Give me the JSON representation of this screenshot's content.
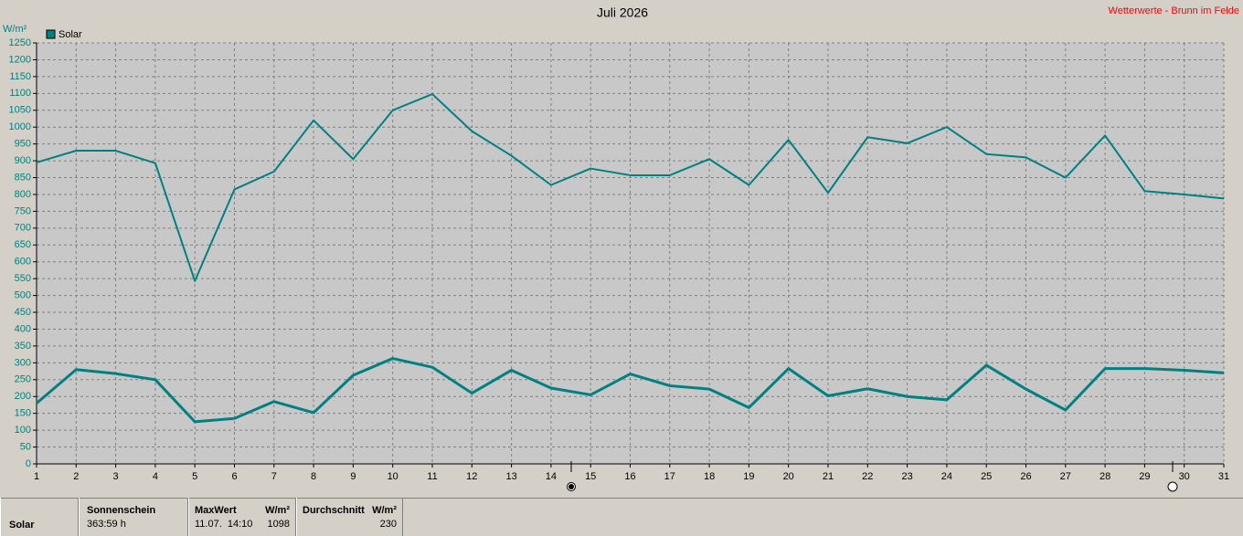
{
  "chart_data": {
    "type": "line",
    "title": "Juli 2026",
    "subtitle": "Wetterwerte - Brunn im Felde",
    "y_label": "W/m²",
    "x": [
      1,
      2,
      3,
      4,
      5,
      6,
      7,
      8,
      9,
      10,
      11,
      12,
      13,
      14,
      15,
      16,
      17,
      18,
      19,
      20,
      21,
      22,
      23,
      24,
      25,
      26,
      27,
      28,
      29,
      30,
      31
    ],
    "series": [
      {
        "name": "Solar",
        "color": "#008080",
        "values": [
          895,
          930,
          930,
          893,
          543,
          815,
          868,
          1020,
          905,
          1050,
          1098,
          988,
          915,
          828,
          877,
          857,
          857,
          905,
          828,
          962,
          805,
          970,
          952,
          1000,
          920,
          910,
          850,
          975,
          810,
          800,
          788
        ]
      },
      {
        "color": "#008080",
        "values": [
          180,
          280,
          268,
          250,
          125,
          135,
          185,
          152,
          263,
          313,
          287,
          210,
          278,
          225,
          205,
          267,
          232,
          222,
          167,
          283,
          202,
          223,
          200,
          190,
          293,
          222,
          160,
          283,
          283,
          278,
          270
        ]
      }
    ],
    "xlim": [
      1,
      31
    ],
    "xticks": [
      1,
      2,
      3,
      4,
      5,
      6,
      7,
      8,
      9,
      10,
      11,
      12,
      13,
      14,
      15,
      16,
      17,
      18,
      19,
      20,
      21,
      22,
      23,
      24,
      25,
      26,
      27,
      28,
      29,
      30,
      31
    ],
    "ylim": [
      0,
      1250
    ],
    "yticks": [
      0,
      50,
      100,
      150,
      200,
      250,
      300,
      350,
      400,
      450,
      500,
      550,
      600,
      650,
      700,
      750,
      800,
      850,
      900,
      950,
      1000,
      1050,
      1100,
      1150,
      1200,
      1250
    ],
    "grid": true,
    "legend": "top-left"
  },
  "footer": {
    "label": "Solar",
    "columns": [
      {
        "title": "Sonnenschein",
        "value": "363:59 h"
      },
      {
        "title": "MaxWert",
        "unit": "W/m²",
        "date": "11.07.  14:10",
        "value": 1098
      },
      {
        "title": "Durchschnitt",
        "unit": "W/m²",
        "value": 230
      }
    ]
  }
}
